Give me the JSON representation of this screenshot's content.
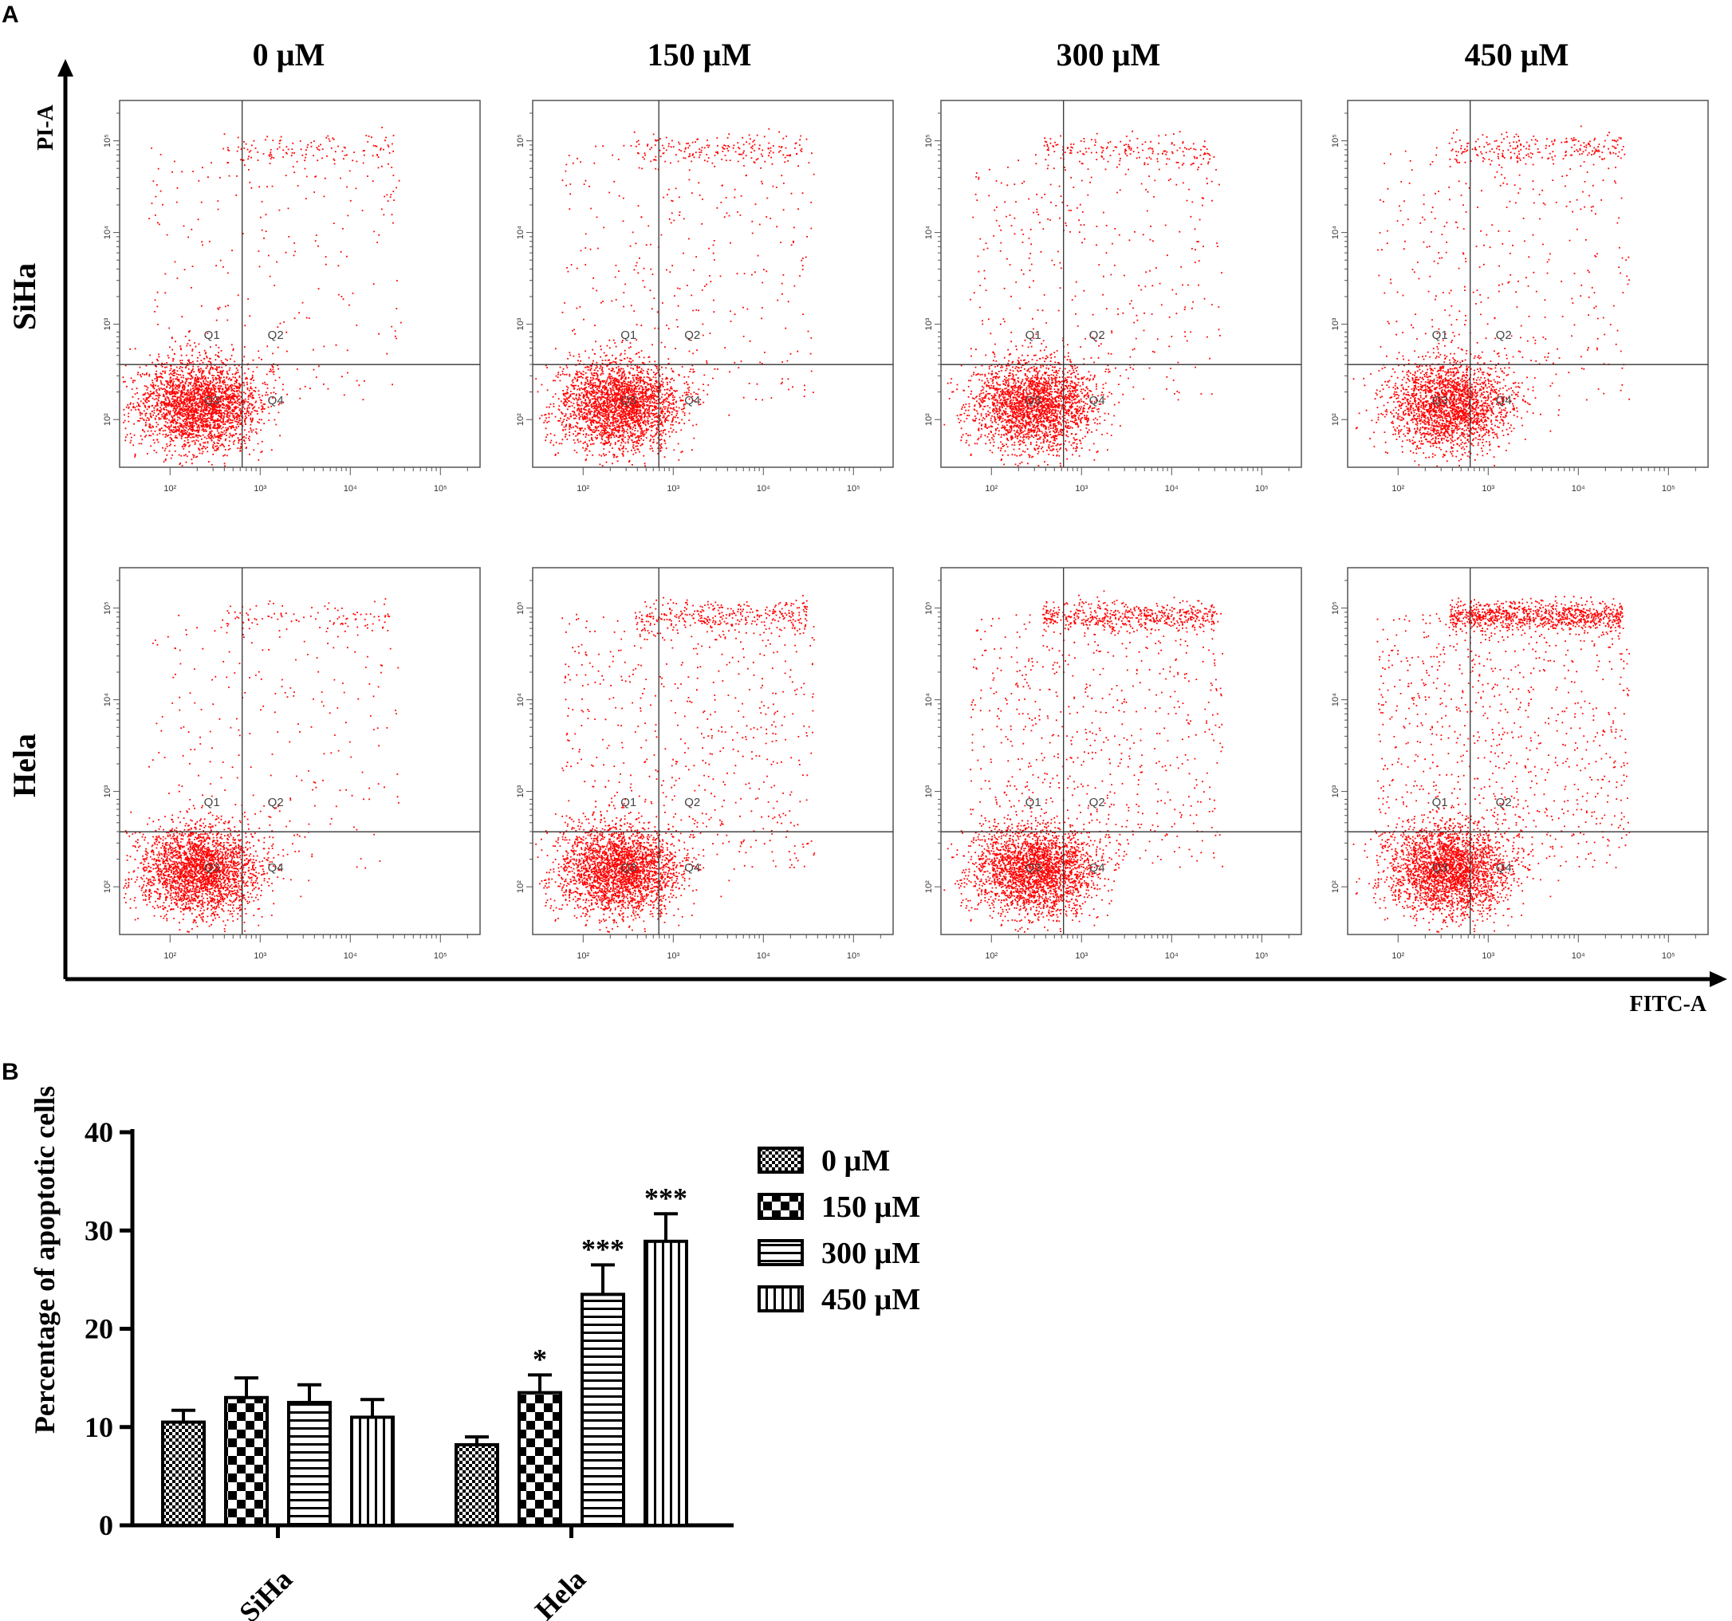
{
  "panel_a": {
    "letter": "A",
    "column_labels": [
      "0 µM",
      "150 µM",
      "300 µM",
      "450 µM"
    ],
    "row_labels": [
      "SiHa",
      "Hela"
    ],
    "y_axis_label": "PI-A",
    "x_axis_label": "FITC-A",
    "quadrant_labels": [
      "Q1",
      "Q2",
      "Q3",
      "Q4"
    ],
    "axis_ticks": [
      "10²",
      "10³",
      "10⁴",
      "10⁵"
    ],
    "dot_color": "#ff0000"
  },
  "chart_data": {
    "type": "bar",
    "panel_letter": "B",
    "title": "",
    "xlabel": "",
    "ylabel": "Percentage of apoptotic cells",
    "ylim": [
      0,
      40
    ],
    "yticks": [
      0,
      10,
      20,
      30,
      40
    ],
    "categories": [
      "SiHa",
      "Hela"
    ],
    "series": [
      {
        "name": "0 µM",
        "pattern": "dense-check",
        "values": [
          10.5,
          8.2
        ],
        "errors": [
          1.2,
          0.8
        ],
        "significance": [
          "",
          ""
        ]
      },
      {
        "name": "150 µM",
        "pattern": "checker",
        "values": [
          13.0,
          13.5
        ],
        "errors": [
          2.0,
          1.8
        ],
        "significance": [
          "",
          "*"
        ]
      },
      {
        "name": "300 µM",
        "pattern": "horizontal",
        "values": [
          12.5,
          23.5
        ],
        "errors": [
          1.8,
          3.0
        ],
        "significance": [
          "",
          "***"
        ]
      },
      {
        "name": "450 µM",
        "pattern": "vertical",
        "values": [
          11.0,
          28.9
        ],
        "errors": [
          1.8,
          2.8
        ],
        "significance": [
          "",
          "***"
        ]
      }
    ],
    "legend_position": "right"
  }
}
